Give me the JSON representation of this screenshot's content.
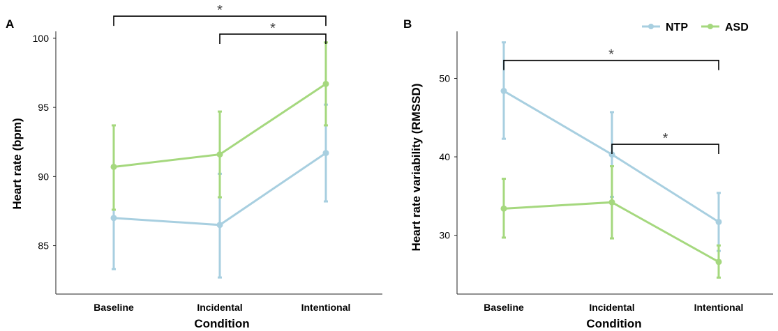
{
  "colors": {
    "NTP": "#a8cfe0",
    "ASD": "#a5d87e",
    "axis": "#222222",
    "bracket": "#000000"
  },
  "legend": {
    "items": [
      {
        "label": "NTP",
        "color": "#a8cfe0"
      },
      {
        "label": "ASD",
        "color": "#a5d87e"
      }
    ]
  },
  "chart_data": [
    {
      "type": "line",
      "panel": "A",
      "categories": [
        "Baseline",
        "Incidental",
        "Intentional"
      ],
      "xlabel": "Condition",
      "ylabel": "Heart rate (bpm)",
      "ylim": [
        81.5,
        100.5
      ],
      "yticks": [
        85,
        90,
        95,
        100
      ],
      "series": [
        {
          "name": "NTP",
          "values": [
            87.0,
            86.5,
            91.7
          ],
          "lower": [
            83.3,
            82.7,
            88.2
          ],
          "upper": [
            90.6,
            90.2,
            95.2
          ]
        },
        {
          "name": "ASD",
          "values": [
            90.7,
            91.6,
            96.7
          ],
          "lower": [
            87.6,
            88.5,
            93.7
          ],
          "upper": [
            93.7,
            94.7,
            99.7
          ]
        }
      ],
      "annotations": [
        {
          "from": "Baseline",
          "to": "Intentional",
          "label": "*",
          "level": 101.6
        },
        {
          "from": "Incidental",
          "to": "Intentional",
          "label": "*",
          "level": 100.3
        }
      ]
    },
    {
      "type": "line",
      "panel": "B",
      "categories": [
        "Baseline",
        "Incidental",
        "Intentional"
      ],
      "xlabel": "Condition",
      "ylabel": "Heart rate variability (RMSSD)",
      "ylim": [
        22.5,
        56
      ],
      "yticks": [
        30,
        40,
        50
      ],
      "series": [
        {
          "name": "NTP",
          "values": [
            48.4,
            40.3,
            31.7
          ],
          "lower": [
            42.3,
            34.9,
            28.0
          ],
          "upper": [
            54.6,
            45.7,
            35.4
          ]
        },
        {
          "name": "ASD",
          "values": [
            33.4,
            34.2,
            26.6
          ],
          "lower": [
            29.7,
            29.6,
            24.6
          ],
          "upper": [
            37.2,
            38.8,
            28.7
          ]
        }
      ],
      "annotations": [
        {
          "from": "Baseline",
          "to": "Intentional",
          "label": "*",
          "level": 52.3
        },
        {
          "from": "Incidental",
          "to": "Intentional",
          "label": "*",
          "level": 41.6
        }
      ]
    }
  ]
}
